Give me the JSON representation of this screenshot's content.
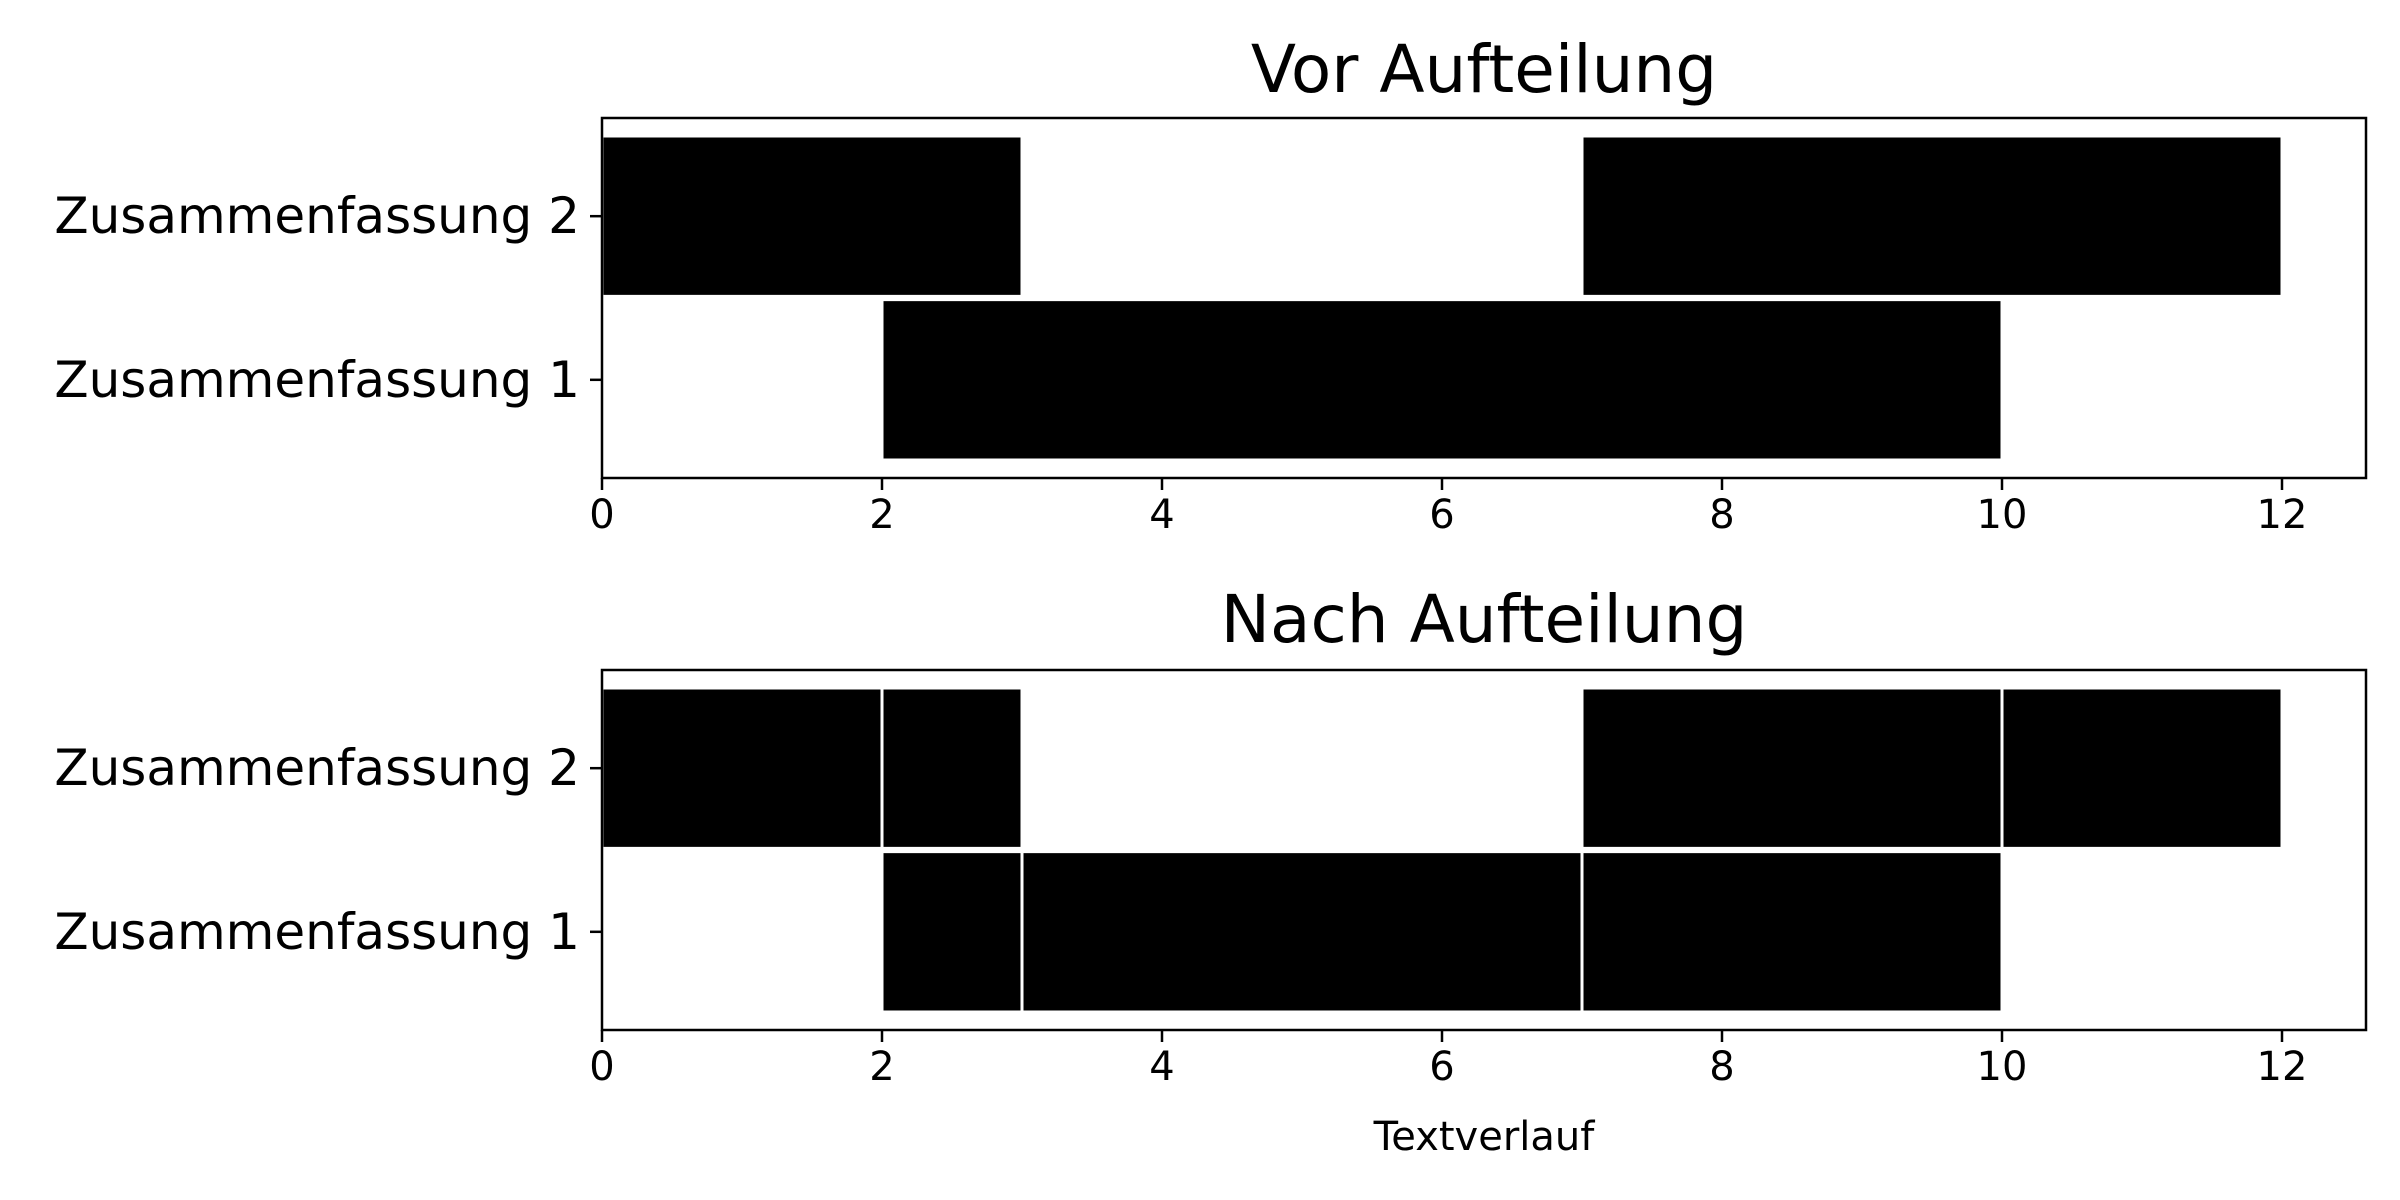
{
  "chart_data": [
    {
      "type": "bar",
      "orientation": "horizontal",
      "title": "Vor Aufteilung",
      "xlabel": "",
      "xlim": [
        0,
        12.6
      ],
      "xticks": [
        0,
        2,
        4,
        6,
        8,
        10,
        12
      ],
      "categories": [
        "Zusammenfassung 1",
        "Zusammenfassung 2"
      ],
      "segments": [
        {
          "category": "Zusammenfassung 2",
          "start": 0,
          "end": 3
        },
        {
          "category": "Zusammenfassung 2",
          "start": 7,
          "end": 12
        },
        {
          "category": "Zusammenfassung 1",
          "start": 2,
          "end": 10
        }
      ],
      "bar_color": "#000000",
      "edge_color": "#ffffff",
      "grid": false,
      "legend": "none"
    },
    {
      "type": "bar",
      "orientation": "horizontal",
      "title": "Nach Aufteilung",
      "xlabel": "Textverlauf",
      "xlim": [
        0,
        12.6
      ],
      "xticks": [
        0,
        2,
        4,
        6,
        8,
        10,
        12
      ],
      "categories": [
        "Zusammenfassung 1",
        "Zusammenfassung 2"
      ],
      "segments": [
        {
          "category": "Zusammenfassung 2",
          "start": 0,
          "end": 2
        },
        {
          "category": "Zusammenfassung 2",
          "start": 2,
          "end": 3
        },
        {
          "category": "Zusammenfassung 2",
          "start": 7,
          "end": 10
        },
        {
          "category": "Zusammenfassung 2",
          "start": 10,
          "end": 12
        },
        {
          "category": "Zusammenfassung 1",
          "start": 2,
          "end": 3
        },
        {
          "category": "Zusammenfassung 1",
          "start": 3,
          "end": 7
        },
        {
          "category": "Zusammenfassung 1",
          "start": 7,
          "end": 10
        }
      ],
      "bar_color": "#000000",
      "edge_color": "#ffffff",
      "grid": false,
      "legend": "none"
    }
  ]
}
